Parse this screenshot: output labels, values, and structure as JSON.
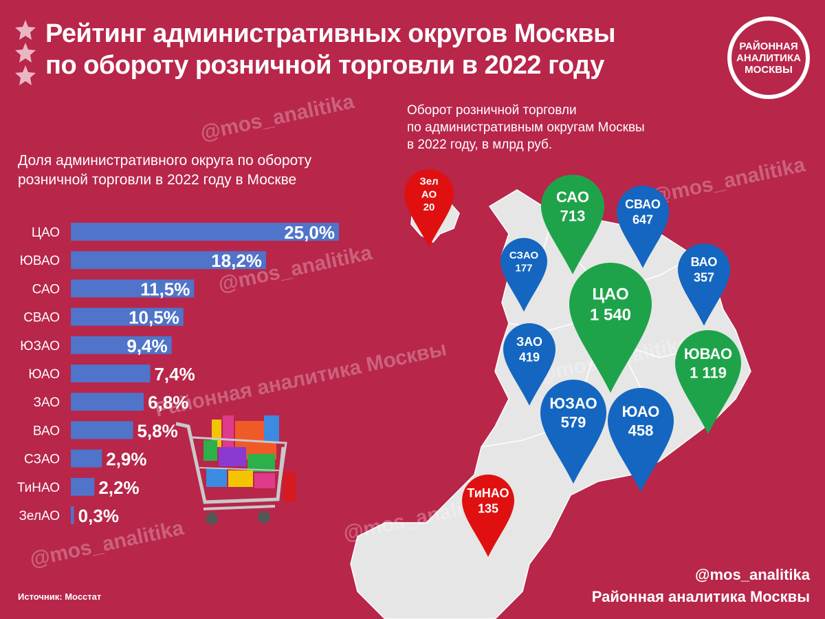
{
  "header": {
    "title_line1": "Рейтинг административных округов Москвы",
    "title_line2": "по обороту розничной торговли в 2022 году"
  },
  "logo": {
    "line1": "РАЙОННАЯ",
    "line2": "АНАЛИТИКА",
    "line3": "МОСКВЫ"
  },
  "map_section": {
    "subtitle_line1": "Оборот розничной торговли",
    "subtitle_line2": "по административным округам Москвы",
    "subtitle_line3": "в 2022 году, в млрд руб."
  },
  "bar_section": {
    "subtitle_line1": "Доля административного округа по обороту",
    "subtitle_line2": "розничной торговли в 2022 году в Москве"
  },
  "watermarks": {
    "handle": "@mos_analitika",
    "brand": "Районная аналитика Москвы"
  },
  "footer": {
    "source": "Источник: Мосстат",
    "handle": "@mos_analitika",
    "brand": "Районная аналитика Москвы"
  },
  "colors": {
    "background": "#b8264a",
    "bar": "#4f74c9",
    "pin_green": "#1fa34a",
    "pin_blue": "#1466c0",
    "pin_red": "#e01010",
    "map": "#e6e6e6"
  },
  "chart_data": [
    {
      "type": "bar",
      "orientation": "horizontal",
      "categories": [
        "ЦАО",
        "ЮВАО",
        "САО",
        "СВАО",
        "ЮЗАО",
        "ЮАО",
        "ЗАО",
        "ВАО",
        "СЗАО",
        "ТиНАО",
        "ЗелАО"
      ],
      "values": [
        25.0,
        18.2,
        11.5,
        10.5,
        9.4,
        7.4,
        6.8,
        5.8,
        2.9,
        2.2,
        0.3
      ],
      "value_labels": [
        "25,0%",
        "18,2%",
        "11,5%",
        "10,5%",
        "9,4%",
        "7,4%",
        "6,8%",
        "5,8%",
        "2,9%",
        "2,2%",
        "0,3%"
      ],
      "xlim": [
        0,
        25
      ]
    },
    {
      "type": "map",
      "pins": [
        {
          "name": "ЦАО",
          "value_label": "1 540",
          "color": "green"
        },
        {
          "name": "ЮВАО",
          "value_label": "1 119",
          "color": "green"
        },
        {
          "name": "САО",
          "value_label": "713",
          "color": "green"
        },
        {
          "name": "СВАО",
          "value_label": "647",
          "color": "blue"
        },
        {
          "name": "ЮЗАО",
          "value_label": "579",
          "color": "blue"
        },
        {
          "name": "ЮАО",
          "value_label": "458",
          "color": "blue"
        },
        {
          "name": "ЗАО",
          "value_label": "419",
          "color": "blue"
        },
        {
          "name": "ВАО",
          "value_label": "357",
          "color": "blue"
        },
        {
          "name": "СЗАО",
          "value_label": "177",
          "color": "blue"
        },
        {
          "name": "ТиНАО",
          "value_label": "135",
          "color": "red"
        },
        {
          "name": "ЗелАО",
          "name_lines": [
            "Зел",
            "АО"
          ],
          "value_label": "20",
          "color": "red"
        }
      ]
    }
  ]
}
